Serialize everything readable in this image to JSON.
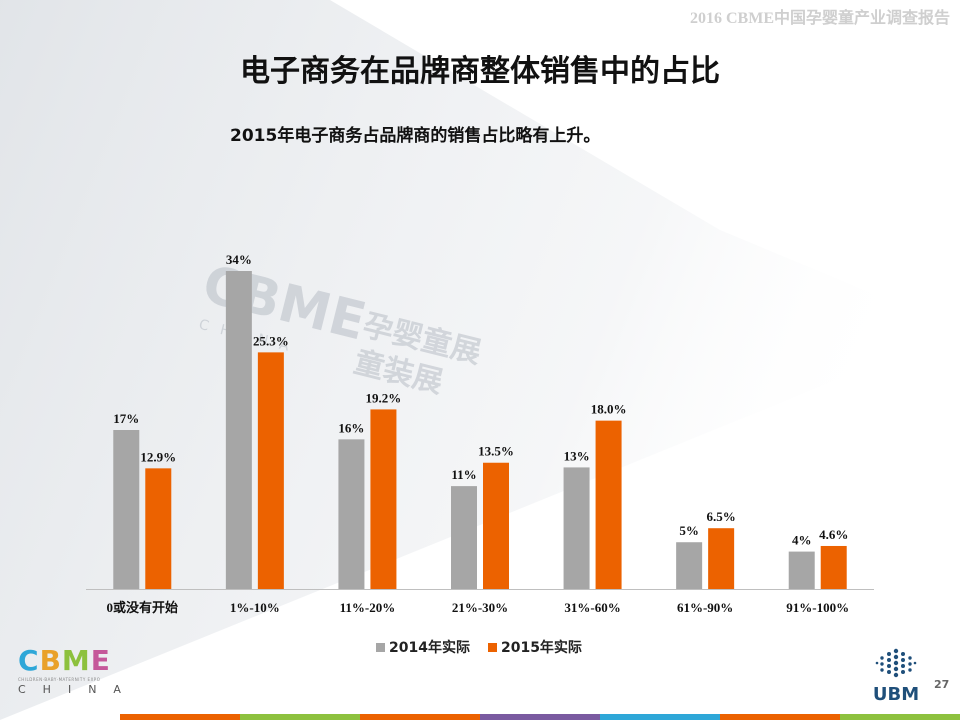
{
  "header": {
    "report_title": "2016 CBME中国孕婴童产业调查报告"
  },
  "slide": {
    "title": "电子商务在品牌商整体销售中的占比",
    "subtitle": "2015年电子商务占品牌商的销售占比略有上升。",
    "page_number": "27"
  },
  "watermark": {
    "brand": "CBME",
    "text_line1": "孕婴童展",
    "text_line2": "童装展",
    "sub": "CHINA"
  },
  "logo": {
    "letters": [
      "C",
      "B",
      "M",
      "E"
    ],
    "letter_colors": [
      "#2ea7d8",
      "#e9a12a",
      "#8dc13e",
      "#c5589a"
    ],
    "tagline": "CHILDREN·BABY·MATERNITY EXPO",
    "country": "CHINA"
  },
  "ubm_logo": {
    "text": "UBM",
    "color": "#1f4f7a"
  },
  "colors": {
    "series_2014": "#a6a6a6",
    "series_2015": "#ec6200",
    "stripe": [
      "#ec6200",
      "#8dc13e",
      "#ec6200",
      "#7a5aa0",
      "#2ea7d8",
      "#ec6200",
      "#8dc13e"
    ]
  },
  "chart_data": {
    "type": "bar",
    "title": "",
    "xlabel": "",
    "ylabel": "",
    "ylim": [
      0,
      36
    ],
    "grid": false,
    "legend_position": "bottom",
    "categories": [
      "0或没有开始",
      "1%-10%",
      "11%-20%",
      "21%-30%",
      "31%-60%",
      "61%-90%",
      "91%-100%"
    ],
    "series": [
      {
        "name": "2014年实际",
        "values": [
          17,
          34,
          16,
          11,
          13,
          5,
          4
        ],
        "labels": [
          "17%",
          "34%",
          "16%",
          "11%",
          "13%",
          "5%",
          "4%"
        ]
      },
      {
        "name": "2015年实际",
        "values": [
          12.9,
          25.3,
          19.2,
          13.5,
          18.0,
          6.5,
          4.6
        ],
        "labels": [
          "12.9%",
          "25.3%",
          "19.2%",
          "13.5%",
          "18.0%",
          "6.5%",
          "4.6%"
        ]
      }
    ]
  }
}
